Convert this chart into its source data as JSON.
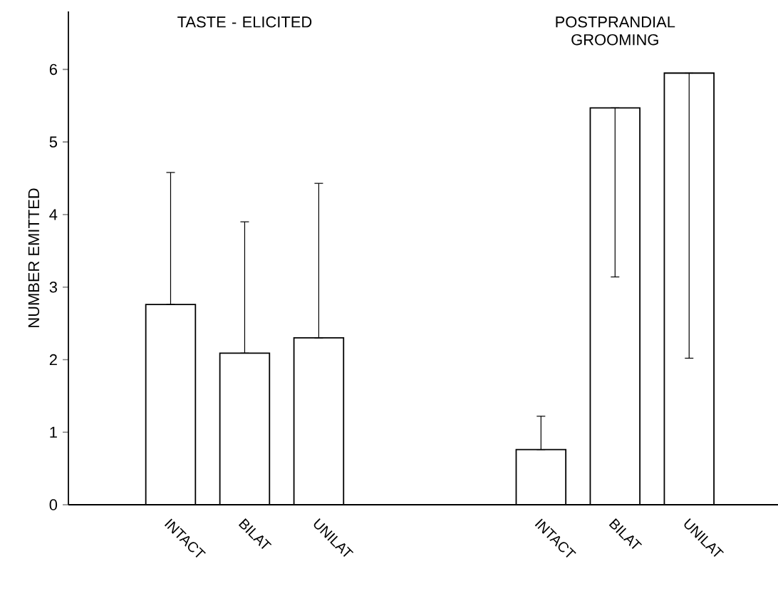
{
  "chart_data": {
    "type": "bar",
    "ylabel": "NUMBER EMITTED",
    "categories": [
      "INTACT",
      "BILAT",
      "UNILAT",
      null,
      null,
      "INTACT",
      "BILAT",
      "UNILAT"
    ],
    "values": [
      2.76,
      2.09,
      2.3,
      null,
      null,
      0.76,
      5.47,
      5.95
    ],
    "errors": [
      [
        2.76,
        4.58
      ],
      [
        2.09,
        3.9
      ],
      [
        2.3,
        4.43
      ],
      null,
      null,
      [
        0.76,
        1.22
      ],
      [
        3.14,
        5.47
      ],
      [
        2.02,
        5.95
      ]
    ],
    "color": "#ffffff",
    "ylim": [
      0,
      6.8
    ],
    "yticks": [
      0,
      1,
      2,
      3,
      4,
      5,
      6
    ],
    "annotations": [
      "TASTE - ELICITED",
      "POSTPRANDIAL GROOMING"
    ],
    "grid": false
  }
}
